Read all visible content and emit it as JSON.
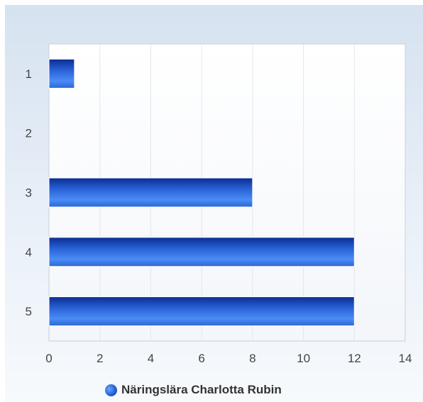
{
  "chart_data": {
    "type": "bar",
    "orientation": "horizontal",
    "categories": [
      "1",
      "2",
      "3",
      "4",
      "5"
    ],
    "series": [
      {
        "name": "Näringslära Charlotta Rubin",
        "values": [
          1,
          0,
          8,
          12,
          12
        ]
      }
    ],
    "xlim": [
      0,
      14
    ],
    "xticks": [
      "0",
      "2",
      "4",
      "6",
      "8",
      "10",
      "12",
      "14"
    ],
    "grid": true,
    "legend_position": "bottom",
    "bar_color": "#1f5fd6"
  }
}
